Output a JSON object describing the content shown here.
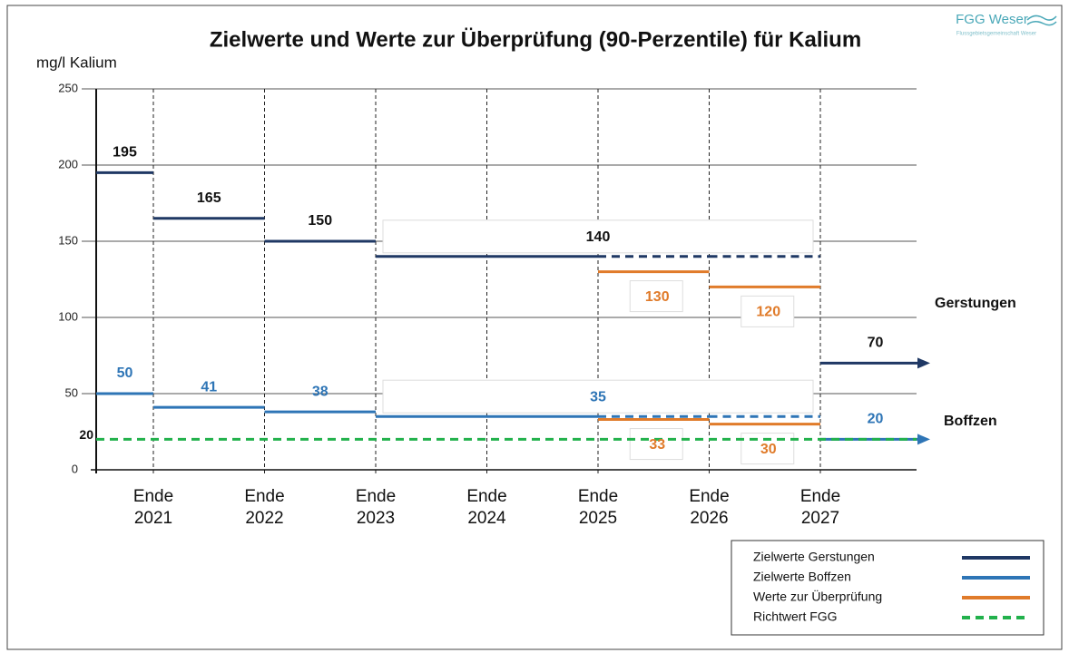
{
  "chart_data": {
    "type": "step",
    "title": "Zielwerte und Werte zur Überprüfung (90-Perzentile) für Kalium",
    "ylabel": "mg/l Kalium",
    "categories": [
      null,
      "Ende 2021",
      "Ende 2022",
      "Ende 2023",
      "Ende 2024",
      "Ende 2025",
      "Ende 2026",
      "Ende 2027"
    ],
    "ylim": [
      0,
      250
    ],
    "yticks": [
      0,
      50,
      100,
      150,
      200,
      250
    ],
    "grid": true,
    "series": [
      {
        "name": "Zielwerte Gerstungen",
        "site": "Gerstungen",
        "color": "#1f3864",
        "values": [
          195,
          165,
          150,
          140,
          140,
          140,
          140,
          70
        ]
      },
      {
        "name": "Zielwerte Boffzen",
        "site": "Boffzen",
        "color": "#2e75b6",
        "values": [
          50,
          41,
          38,
          35,
          35,
          35,
          35,
          20
        ]
      },
      {
        "name": "Werte zur Überprüfung",
        "site": "Gerstungen",
        "color": "#e07b2a",
        "values": [
          null,
          null,
          null,
          null,
          null,
          130,
          120,
          null
        ]
      },
      {
        "site": "Boffzen",
        "color": "#e07b2a",
        "values": [
          null,
          null,
          null,
          null,
          null,
          33,
          30,
          null
        ]
      },
      {
        "name": "Richtwert FGG",
        "color": "#22b14c",
        "dashed": true,
        "values": [
          20,
          20,
          20,
          20,
          20,
          20,
          20,
          20
        ]
      }
    ]
  },
  "logo": {
    "name": "FGG Weser",
    "subtitle": "Flussgebietsgemeinschaft Weser"
  }
}
